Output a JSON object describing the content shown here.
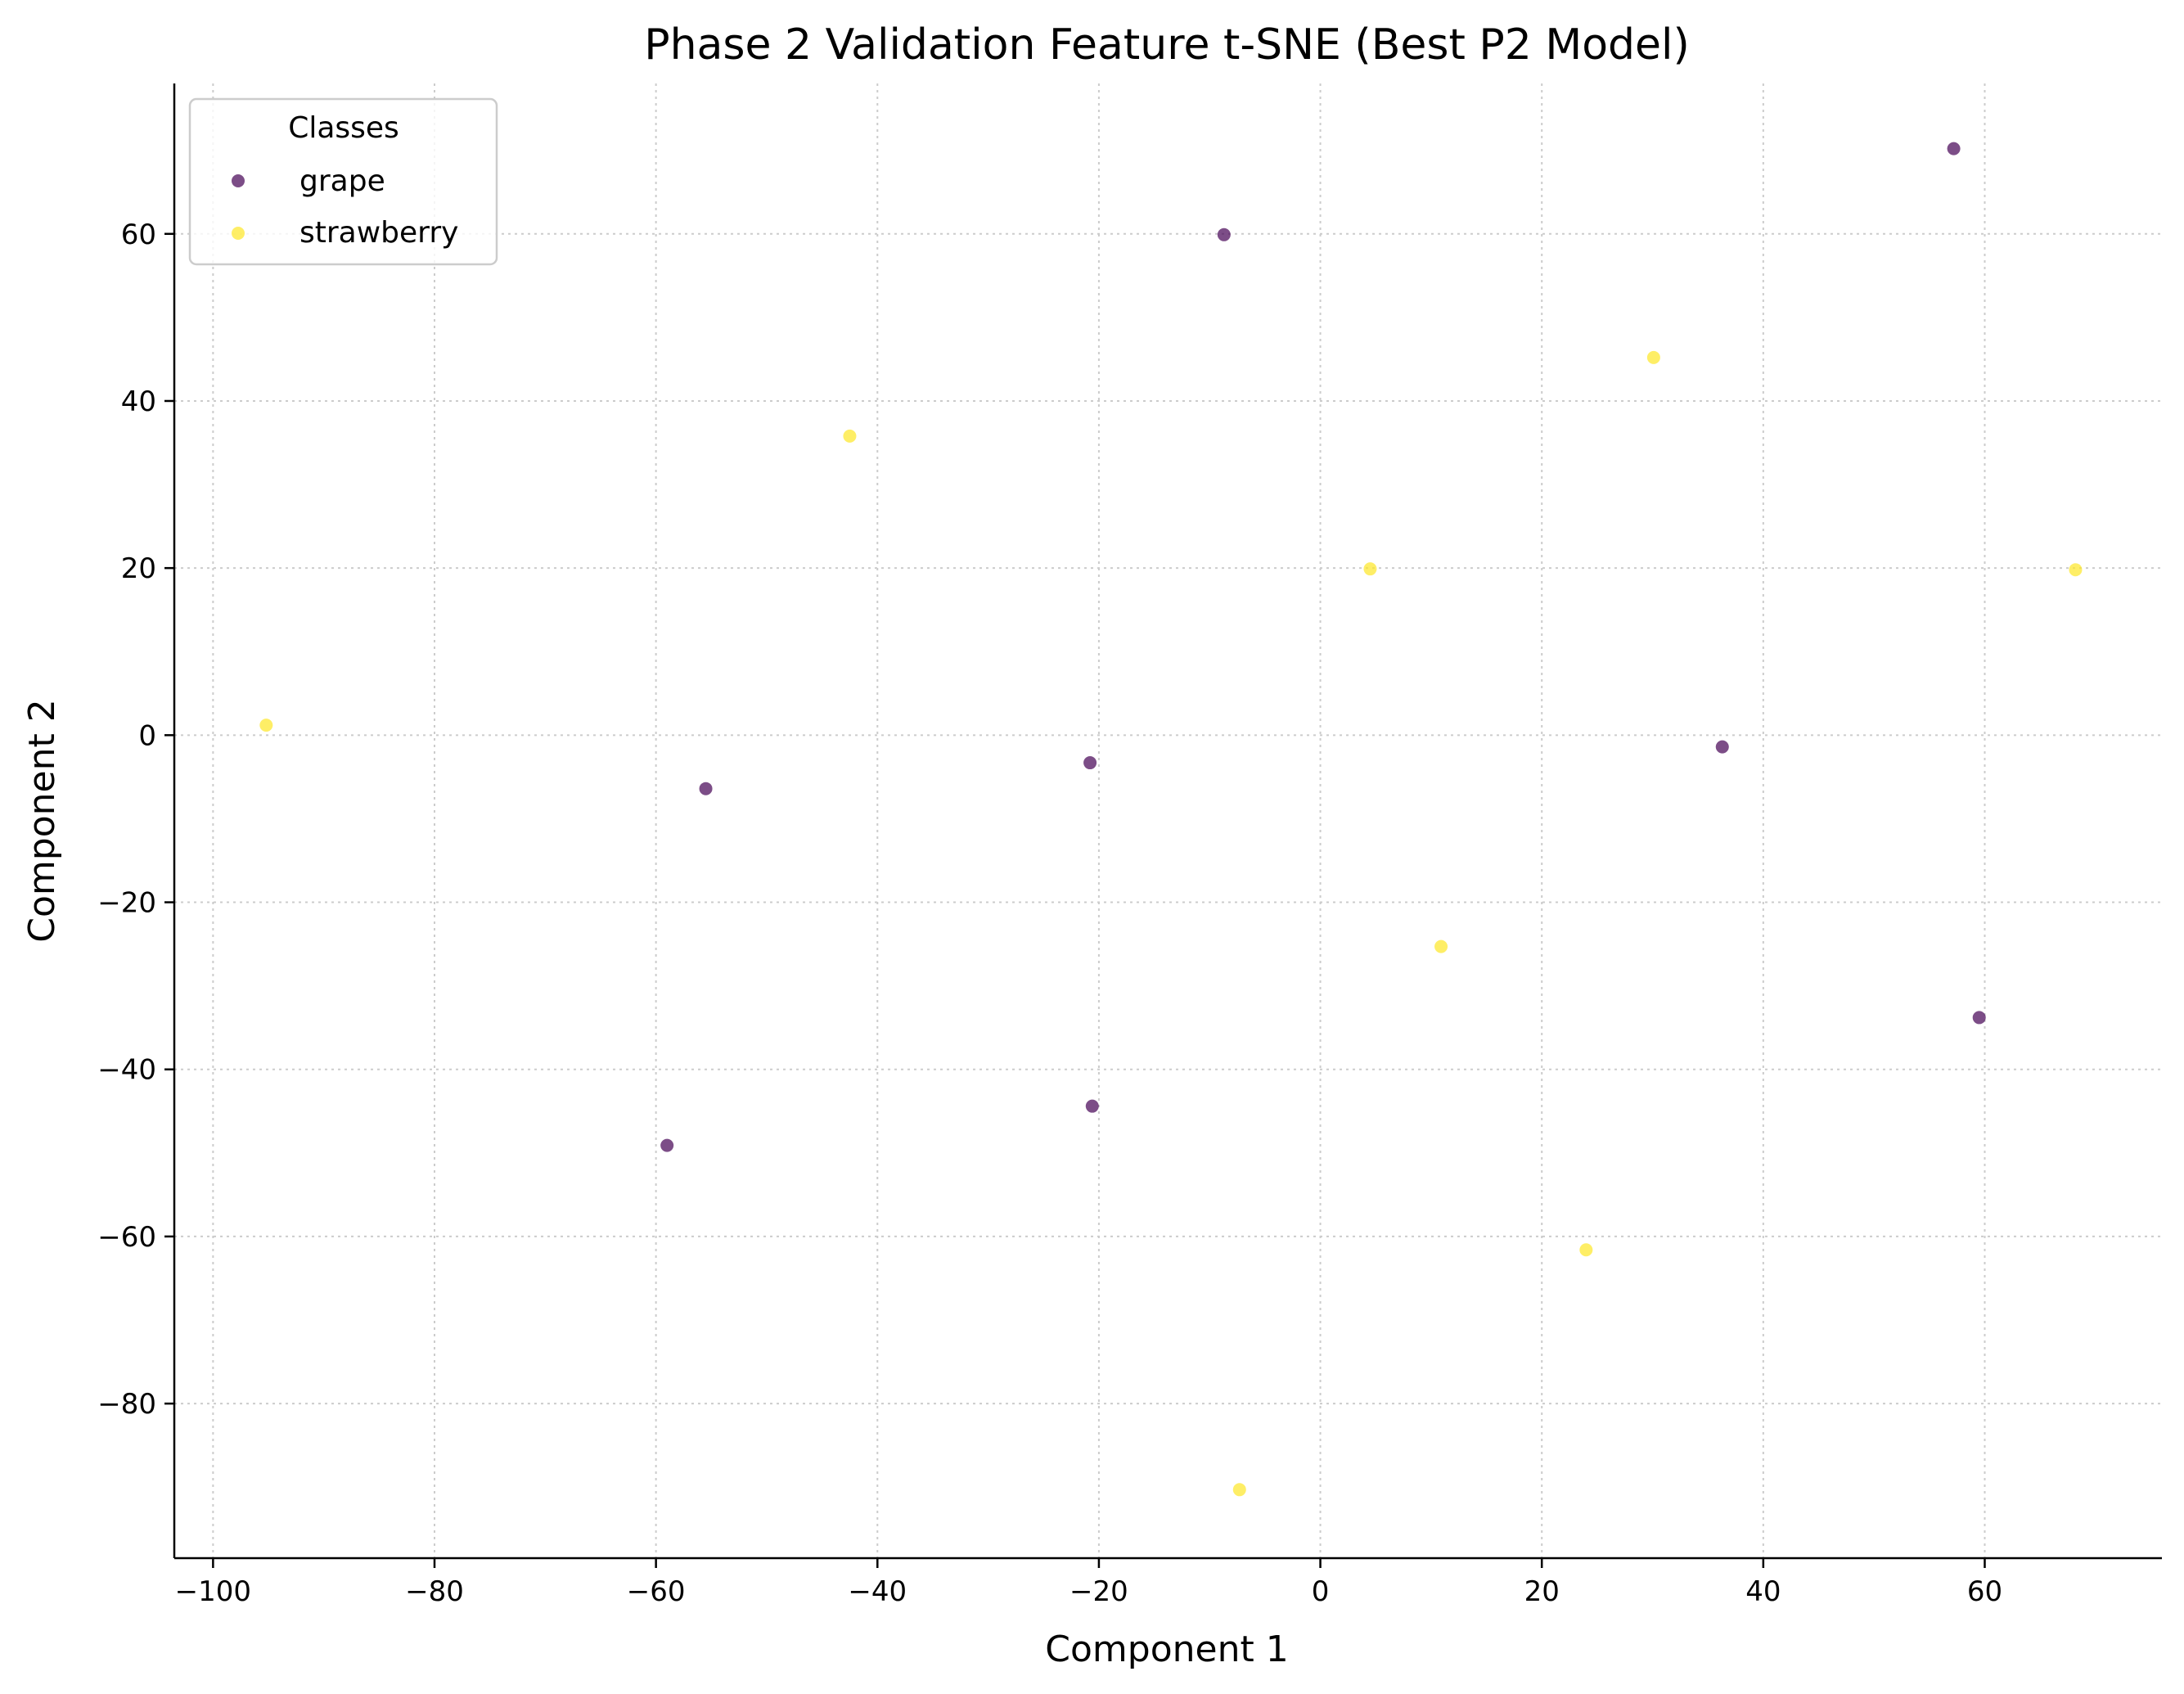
{
  "chart_data": {
    "type": "scatter",
    "title": "Phase 2 Validation Feature t-SNE (Best P2 Model)",
    "xlabel": "Component 1",
    "ylabel": "Component 2",
    "xlim": [
      -103.5,
      76.0
    ],
    "ylim": [
      -98.5,
      78.0
    ],
    "xticks": [
      -100,
      -80,
      -60,
      -40,
      -20,
      0,
      20,
      40,
      60
    ],
    "yticks": [
      -80,
      -60,
      -40,
      -20,
      0,
      20,
      40,
      60
    ],
    "xtick_labels": [
      "−100",
      "−80",
      "−60",
      "−40",
      "−20",
      "0",
      "20",
      "40",
      "60"
    ],
    "ytick_labels": [
      "−80",
      "−60",
      "−40",
      "−20",
      "0",
      "20",
      "40",
      "60"
    ],
    "grid": true,
    "legend": {
      "title": "Classes",
      "position": "top-left"
    },
    "series": [
      {
        "name": "grape",
        "color": "#440154",
        "points": [
          {
            "x": 57.2,
            "y": 70.2
          },
          {
            "x": -8.7,
            "y": 59.9
          },
          {
            "x": -20.8,
            "y": -3.3
          },
          {
            "x": -55.5,
            "y": -6.4
          },
          {
            "x": 36.3,
            "y": -1.4
          },
          {
            "x": 59.5,
            "y": -33.8
          },
          {
            "x": -20.6,
            "y": -44.4
          },
          {
            "x": -59.0,
            "y": -49.1
          }
        ]
      },
      {
        "name": "strawberry",
        "color": "#fde725",
        "points": [
          {
            "x": 30.1,
            "y": 45.2
          },
          {
            "x": -42.5,
            "y": 35.8
          },
          {
            "x": 4.5,
            "y": 19.9
          },
          {
            "x": 68.2,
            "y": 19.8
          },
          {
            "x": -95.2,
            "y": 1.2
          },
          {
            "x": 10.9,
            "y": -25.3
          },
          {
            "x": 24.0,
            "y": -61.6
          },
          {
            "x": -7.3,
            "y": -90.3
          }
        ]
      }
    ]
  }
}
